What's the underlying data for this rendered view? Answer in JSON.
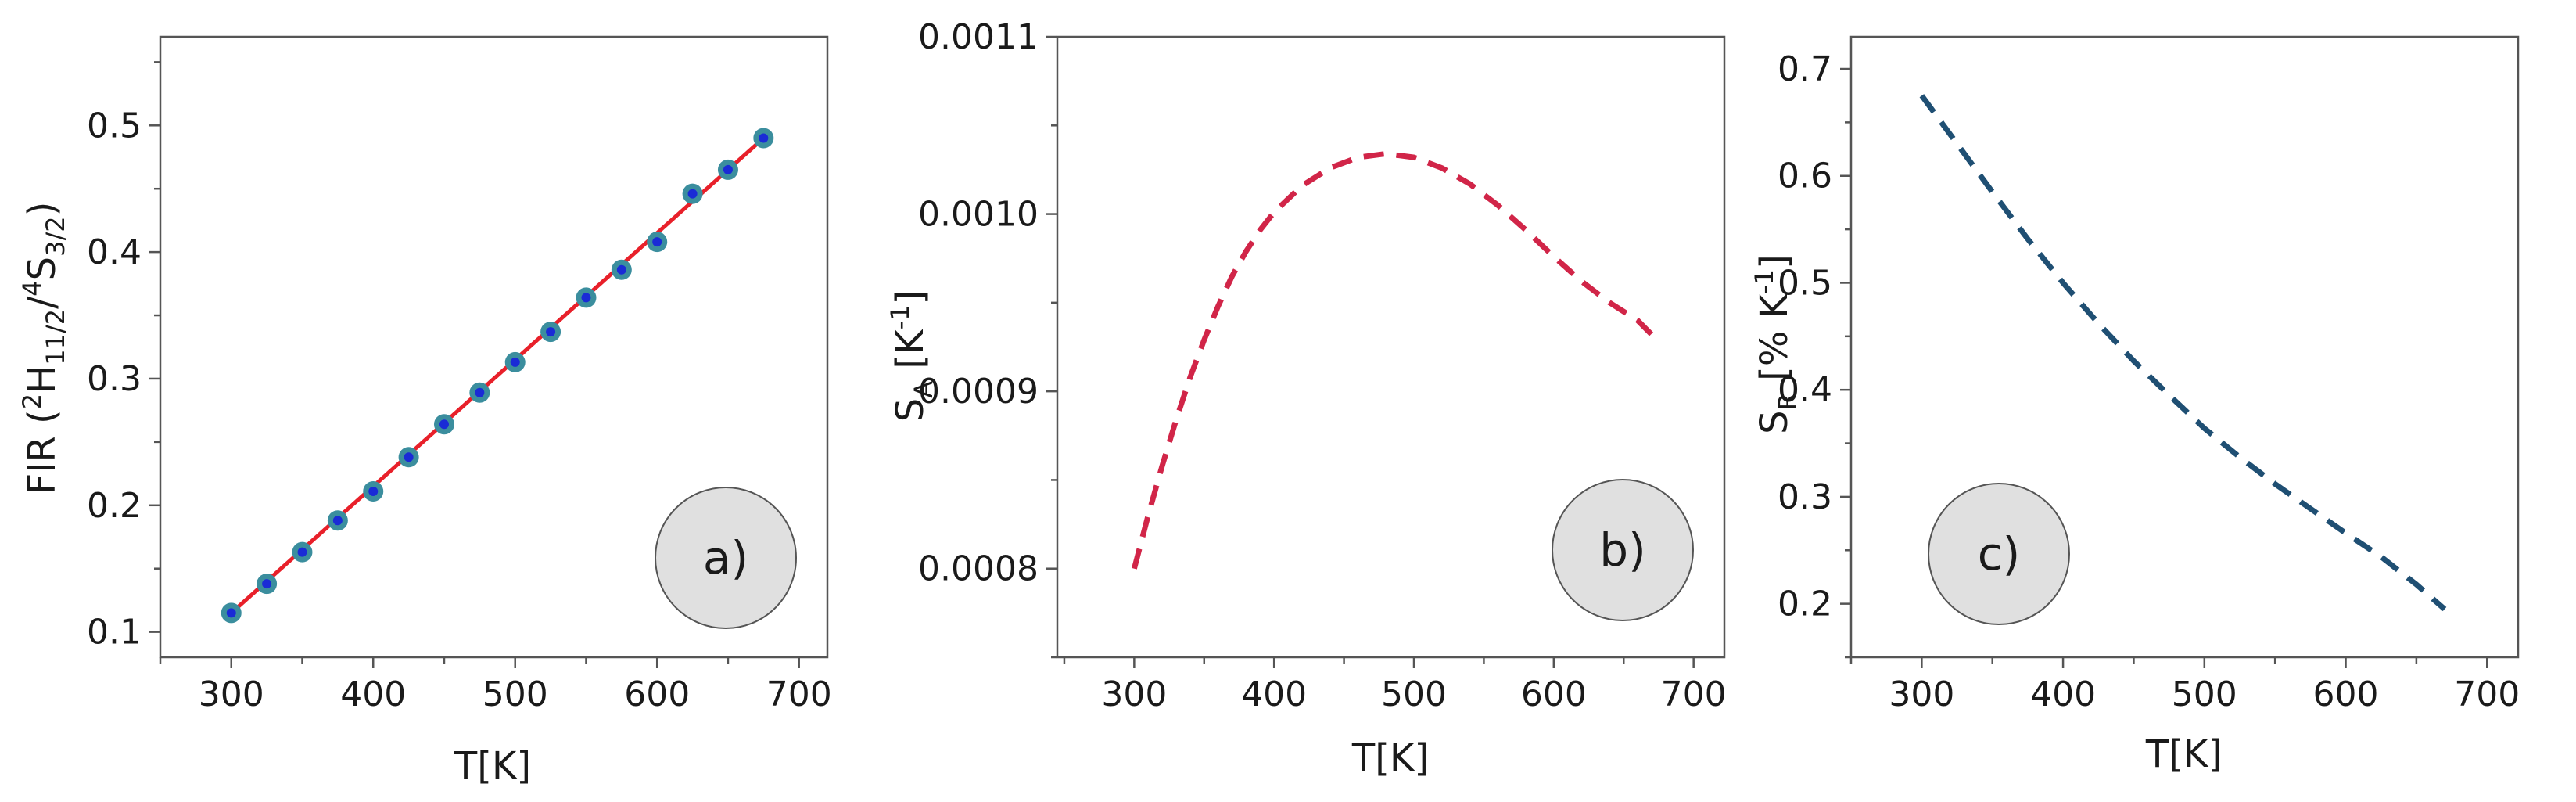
{
  "chart_data": [
    {
      "id": "a",
      "type": "scatter",
      "badge": "a)",
      "xlabel": "T[K]",
      "ylabel": {
        "main": "FIR (",
        "sup1": "2",
        "h": "H",
        "sub1": "11/2",
        "slash": "/",
        "sup2": "4",
        "s": "S",
        "sub2": "3/2",
        "close": ")"
      },
      "xlim": [
        250,
        720
      ],
      "ylim": [
        0.08,
        0.57
      ],
      "xticks": [
        300,
        400,
        500,
        600,
        700
      ],
      "yticks": [
        0.1,
        0.2,
        0.3,
        0.4,
        0.5
      ],
      "ytick_labels": [
        "0.1",
        "0.2",
        "0.3",
        "0.4",
        "0.5"
      ],
      "x": [
        300,
        325,
        350,
        375,
        400,
        425,
        450,
        475,
        500,
        525,
        550,
        575,
        600,
        625,
        650,
        675
      ],
      "y": [
        0.115,
        0.138,
        0.163,
        0.188,
        0.211,
        0.238,
        0.264,
        0.289,
        0.313,
        0.337,
        0.364,
        0.386,
        0.408,
        0.446,
        0.465,
        0.49
      ],
      "fit": {
        "x": [
          300,
          675
        ],
        "y": [
          0.115,
          0.49
        ]
      },
      "colors": {
        "fit": "#e8202a",
        "marker_outer": "#3b8e9e",
        "marker_inner": "#1a2bd6"
      }
    },
    {
      "id": "b",
      "type": "line",
      "badge": "b)",
      "xlabel": "T[K]",
      "ylabel": {
        "main": "S",
        "sub": "A",
        "unit": " [K",
        "sup": "-1",
        "close": "]"
      },
      "xlim": [
        245,
        722
      ],
      "ylim": [
        0.00075,
        0.0011
      ],
      "xticks": [
        300,
        400,
        500,
        600,
        700
      ],
      "yticks": [
        0.0008,
        0.0009,
        0.001,
        0.0011
      ],
      "ytick_labels": [
        "0.0008",
        "0.0009",
        "0.0010",
        "0.0011"
      ],
      "x": [
        300,
        310,
        320,
        330,
        340,
        350,
        360,
        370,
        380,
        390,
        400,
        420,
        440,
        460,
        480,
        500,
        520,
        540,
        560,
        580,
        600,
        620,
        640,
        660,
        670
      ],
      "y": [
        0.0008,
        0.00083,
        0.000858,
        0.000884,
        0.000908,
        0.000929,
        0.000948,
        0.000965,
        0.000979,
        0.000991,
        0.001001,
        0.001016,
        0.001026,
        0.001032,
        0.001034,
        0.001032,
        0.001026,
        0.001017,
        0.001005,
        0.000991,
        0.000976,
        0.000962,
        0.00095,
        0.00094,
        0.000932
      ],
      "colors": {
        "line": "#d12548"
      }
    },
    {
      "id": "c",
      "type": "line",
      "badge": "c)",
      "xlabel": "T[K]",
      "ylabel": {
        "main": "S",
        "sub": "R",
        "unit": " [% K",
        "sup": "-1",
        "close": "]"
      },
      "xlim": [
        250,
        722
      ],
      "ylim": [
        0.15,
        0.73
      ],
      "xticks": [
        300,
        400,
        500,
        600,
        700
      ],
      "yticks": [
        0.2,
        0.3,
        0.4,
        0.5,
        0.6,
        0.7
      ],
      "ytick_labels": [
        "0.2",
        "0.3",
        "0.4",
        "0.5",
        "0.6",
        "0.7"
      ],
      "x": [
        300,
        325,
        350,
        375,
        400,
        425,
        450,
        475,
        500,
        525,
        550,
        575,
        600,
        625,
        650,
        670
      ],
      "y": [
        0.675,
        0.63,
        0.585,
        0.541,
        0.5,
        0.462,
        0.427,
        0.395,
        0.364,
        0.337,
        0.312,
        0.289,
        0.266,
        0.244,
        0.218,
        0.195
      ],
      "colors": {
        "line": "#1f4f73"
      }
    }
  ]
}
